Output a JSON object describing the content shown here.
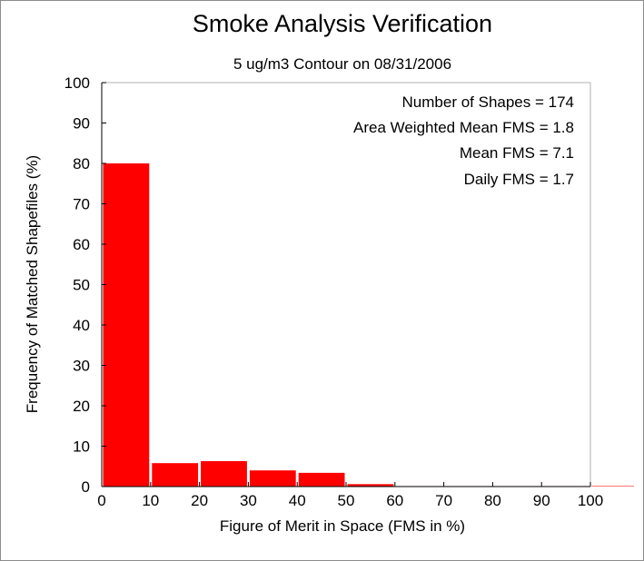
{
  "chart_data": {
    "type": "bar",
    "title": "Smoke Analysis Verification",
    "subtitle": "5 ug/m3 Contour on 08/31/2006",
    "xlabel": "Figure of Merit in Space (FMS in %)",
    "ylabel": "Frequency of Matched Shapefiles (%)",
    "xlim": [
      0,
      100
    ],
    "ylim": [
      0,
      100
    ],
    "xticks": [
      "0",
      "10",
      "20",
      "30",
      "40",
      "50",
      "60",
      "70",
      "80",
      "90",
      "100"
    ],
    "yticks": [
      "0",
      "10",
      "20",
      "30",
      "40",
      "50",
      "60",
      "70",
      "80",
      "90",
      "100"
    ],
    "bins": [
      {
        "from": 0,
        "to": 10,
        "value": 80.0
      },
      {
        "from": 10,
        "to": 20,
        "value": 5.8
      },
      {
        "from": 20,
        "to": 30,
        "value": 6.3
      },
      {
        "from": 30,
        "to": 40,
        "value": 4.0
      },
      {
        "from": 40,
        "to": 50,
        "value": 3.4
      },
      {
        "from": 50,
        "to": 60,
        "value": 0.6
      },
      {
        "from": 60,
        "to": 70,
        "value": 0.0
      },
      {
        "from": 70,
        "to": 80,
        "value": 0.0
      },
      {
        "from": 80,
        "to": 90,
        "value": 0.0
      },
      {
        "from": 90,
        "to": 100,
        "value": 0.0
      },
      {
        "from": 100,
        "to": 110,
        "value": 0.0
      }
    ],
    "bar_color": "#ff0000",
    "annotations": [
      "Number of Shapes = 174",
      "Area Weighted Mean FMS = 1.8",
      "Mean FMS = 7.1",
      "Daily FMS = 1.7"
    ]
  }
}
